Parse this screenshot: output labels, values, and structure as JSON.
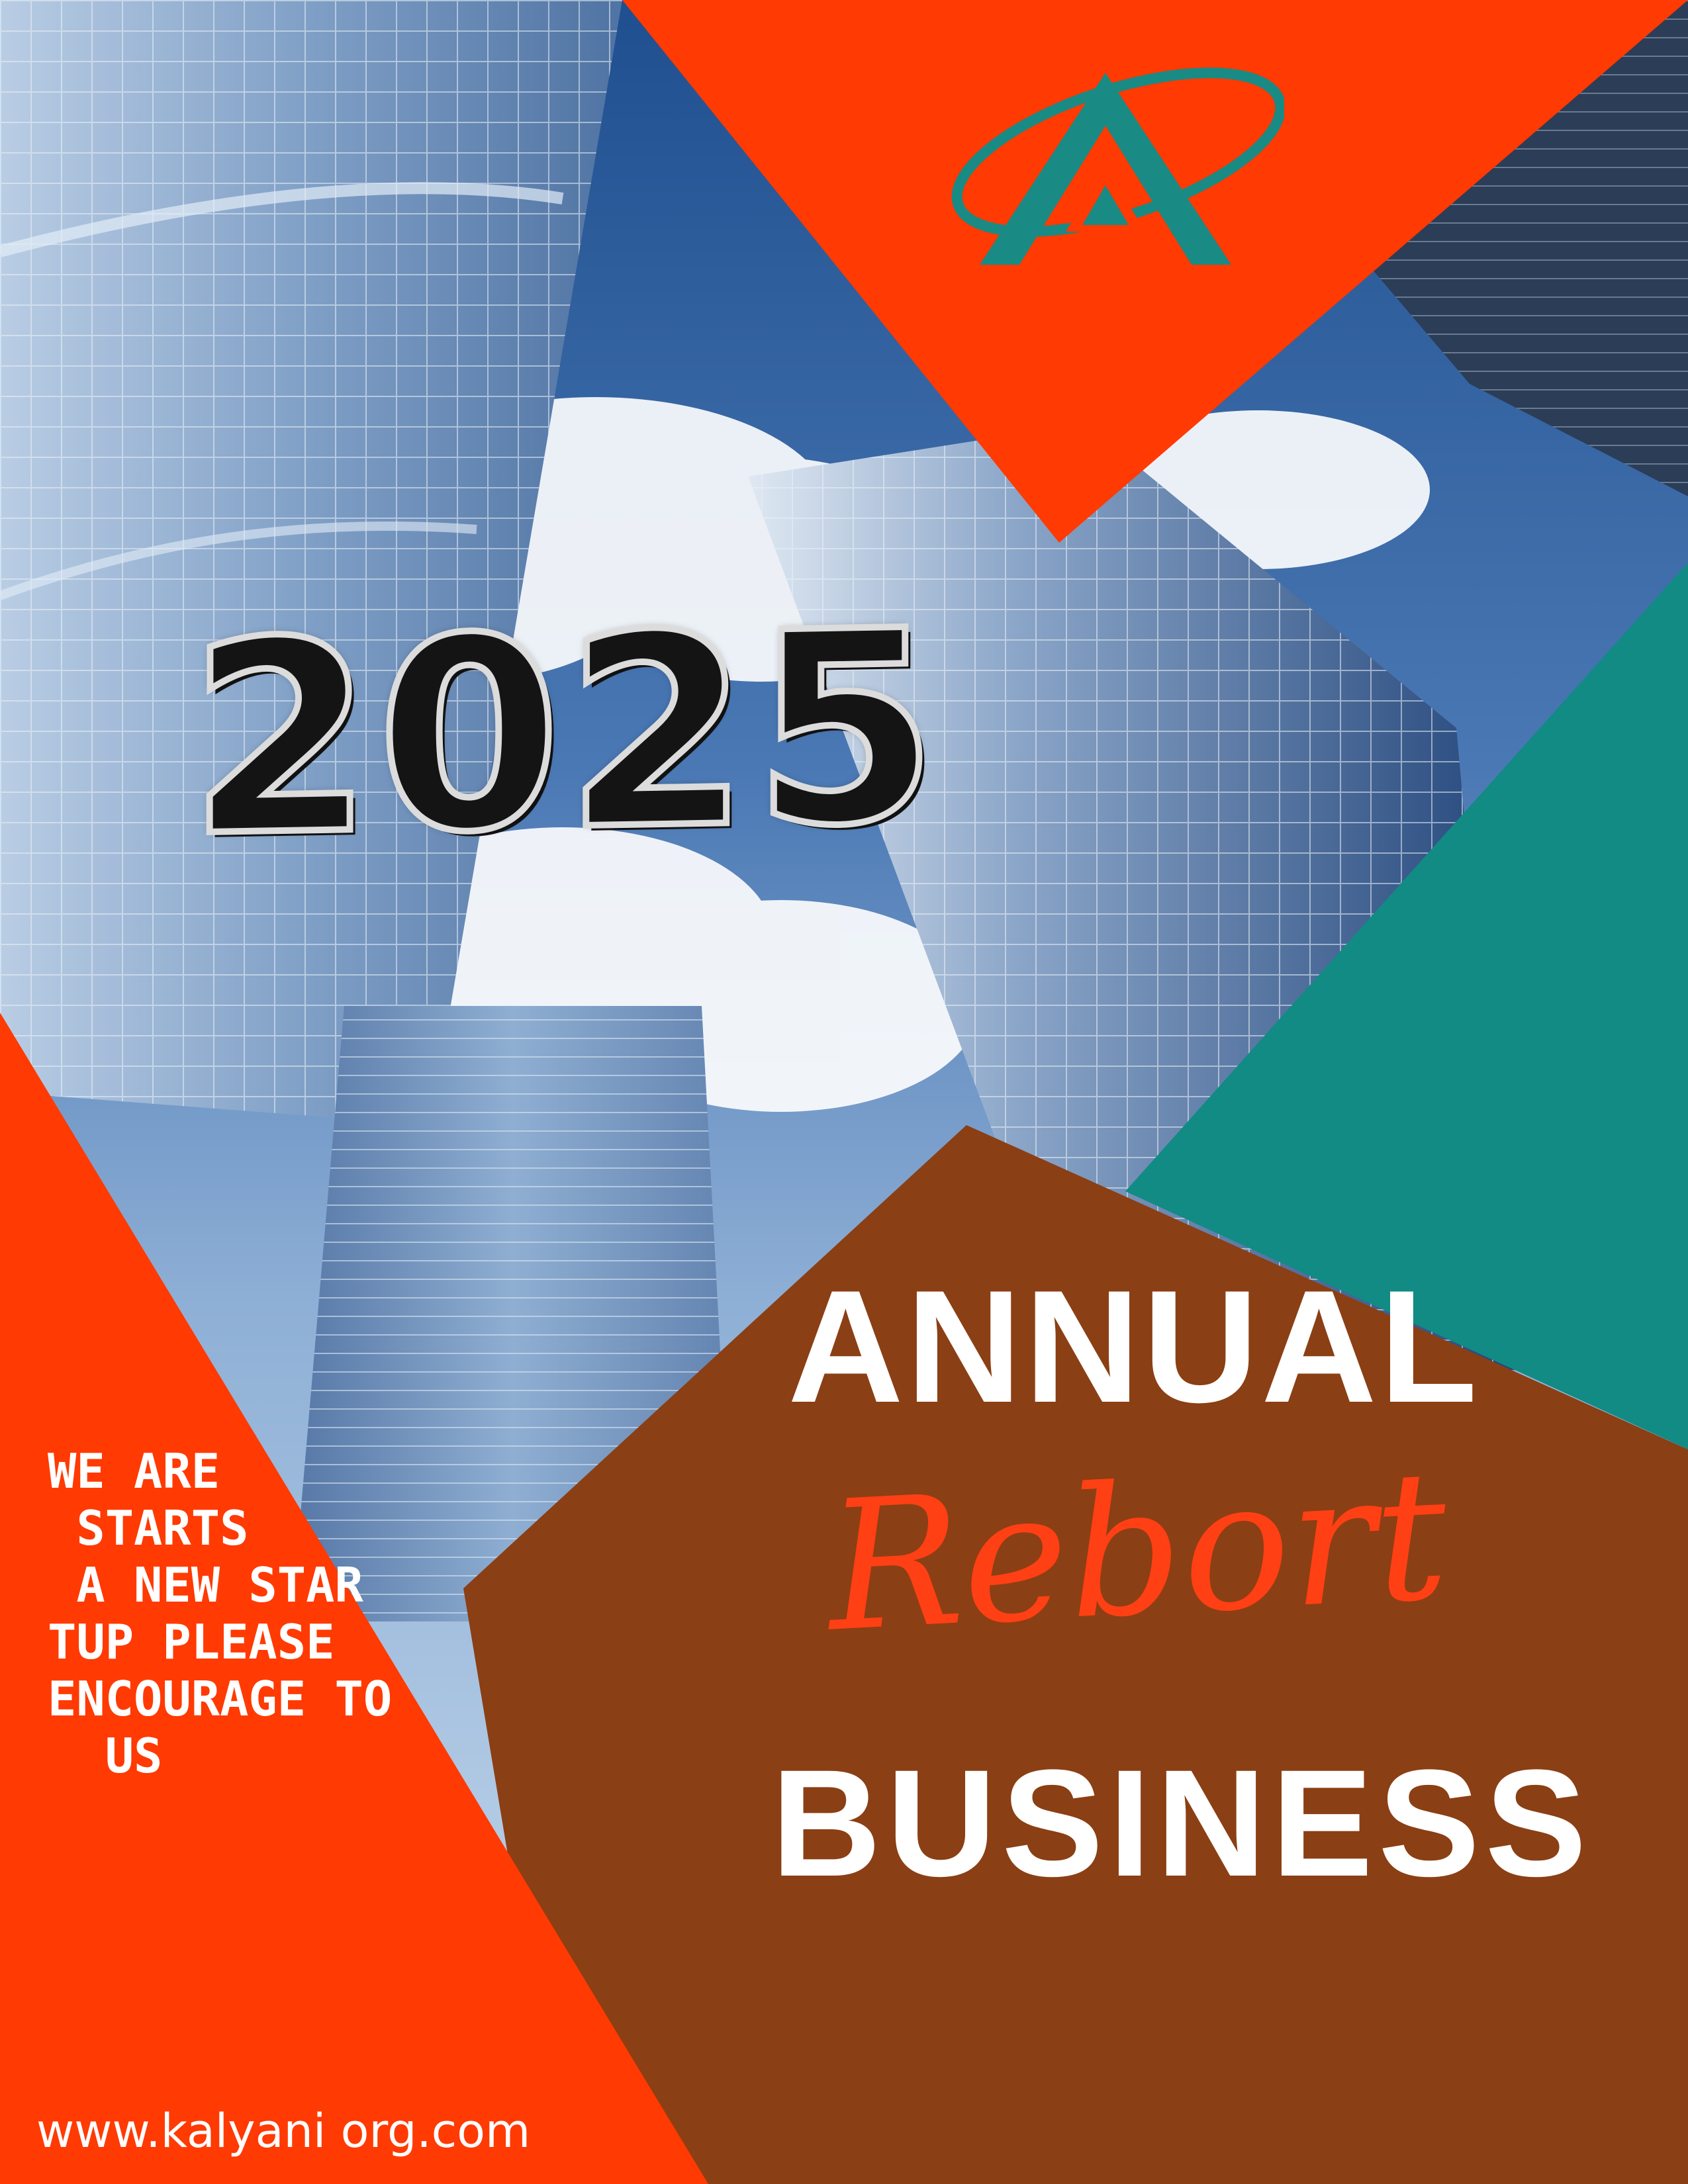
{
  "cover": {
    "year": "2025",
    "title_line1": "ANNUAL",
    "title_line2": "Rebort",
    "title_line3": "BUSINESS",
    "tagline_lines": [
      "WE ARE",
      " STARTS",
      " A NEW STAR",
      "TUP PLEASE",
      "ENCOURAGE TO",
      "  US"
    ],
    "website": "www.kalyani org.com"
  },
  "colors": {
    "orange": "#ff3a02",
    "teal": "#118b84",
    "brown": "#8b3f14",
    "sky": "#3f6fa8",
    "white": "#ffffff",
    "logo_teal": "#1a8a84"
  },
  "icons": {
    "logo": "triangle-A-with-orbit-logo"
  }
}
